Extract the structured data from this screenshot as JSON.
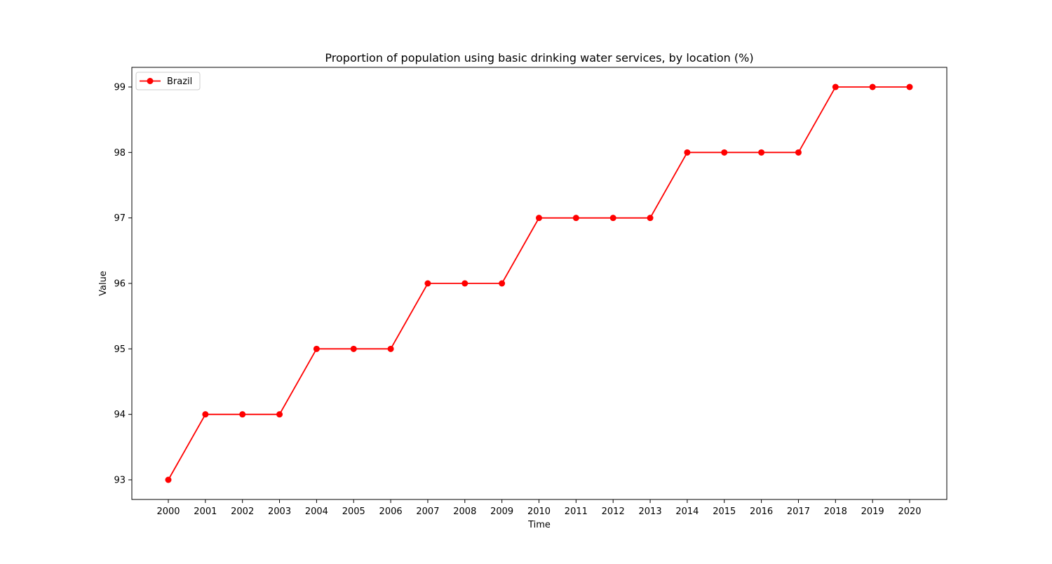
{
  "chart_data": {
    "type": "line",
    "title": "Proportion of population using basic drinking water services, by location (%)",
    "xlabel": "Time",
    "ylabel": "Value",
    "x": [
      "2000",
      "2001",
      "2002",
      "2003",
      "2004",
      "2005",
      "2006",
      "2007",
      "2008",
      "2009",
      "2010",
      "2011",
      "2012",
      "2013",
      "2014",
      "2015",
      "2016",
      "2017",
      "2018",
      "2019",
      "2020"
    ],
    "yticks": [
      "93",
      "94",
      "95",
      "96",
      "97",
      "98",
      "99"
    ],
    "ylim": [
      92.7,
      99.3
    ],
    "grid": false,
    "legend_position": "top-left",
    "series": [
      {
        "name": "Brazil",
        "color": "#ff0000",
        "marker": "circle",
        "values": [
          93,
          94,
          94,
          94,
          95,
          95,
          95,
          96,
          96,
          96,
          97,
          97,
          97,
          97,
          98,
          98,
          98,
          98,
          99,
          99,
          99
        ]
      }
    ]
  }
}
